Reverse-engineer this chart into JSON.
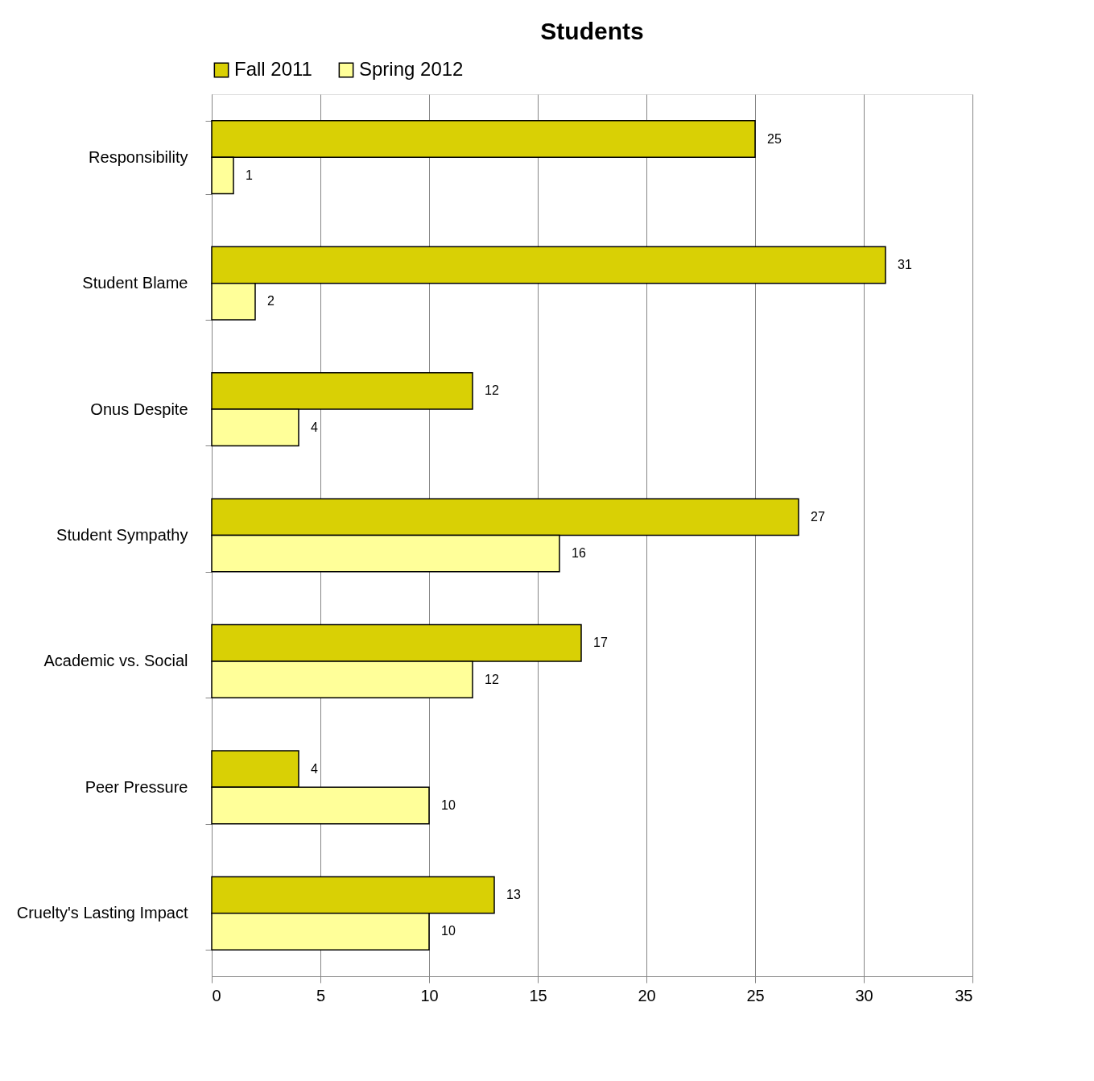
{
  "chart_data": {
    "type": "bar",
    "orientation": "horizontal",
    "title": "Students",
    "categories": [
      "Responsibility",
      "Student Blame",
      "Onus Despite",
      "Student Sympathy",
      "Academic vs. Social",
      "Peer Pressure",
      "Cruelty's Lasting Impact"
    ],
    "series": [
      {
        "name": "Fall 2011",
        "color": "#d9d005",
        "values": [
          25,
          31,
          12,
          27,
          17,
          4,
          13
        ]
      },
      {
        "name": "Spring 2012",
        "color": "#ffff99",
        "values": [
          1,
          2,
          4,
          16,
          12,
          10,
          10
        ]
      }
    ],
    "xlim": [
      0,
      35
    ],
    "xticks": [
      0,
      5,
      10,
      15,
      20,
      25,
      30,
      35
    ],
    "grid": "x",
    "legend": "top",
    "data_labels": true
  }
}
